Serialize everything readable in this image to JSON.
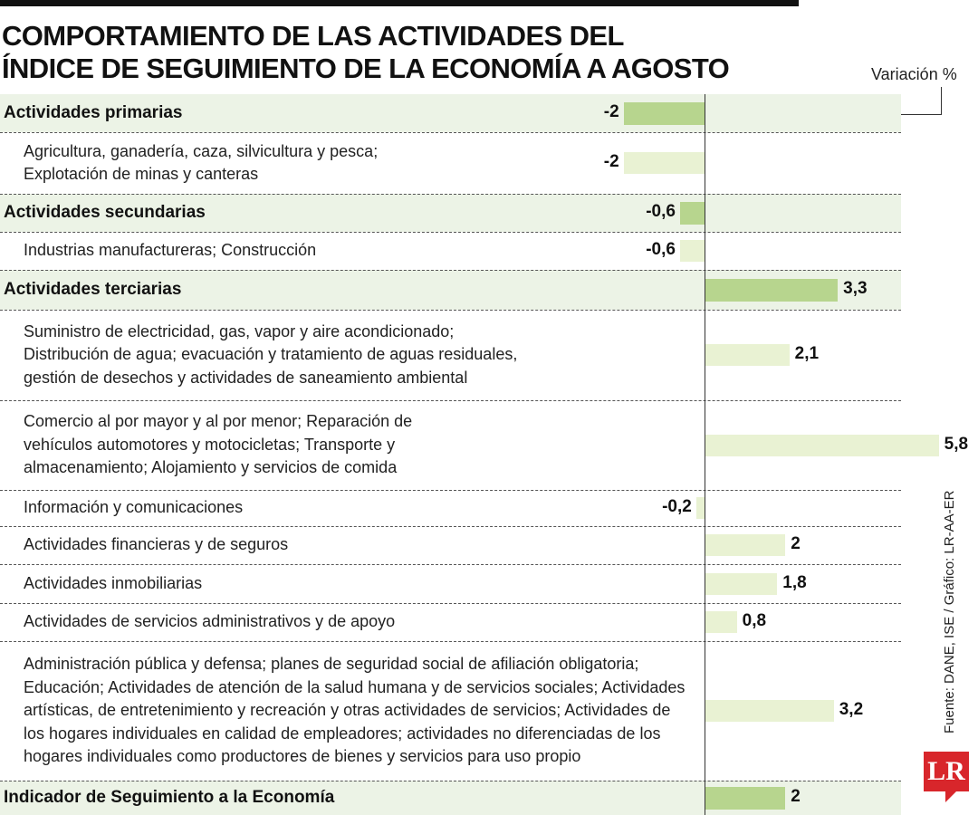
{
  "title_lines": [
    "COMPORTAMIENTO DE LAS ACTIVIDADES DEL",
    "ÍNDICE DE SEGUIMIENTO DE LA ECONOMÍA A AGOSTO"
  ],
  "unit_label": "Variación %",
  "source": "Fuente: DANE, ISE / Gráfico: LR-AA-ER",
  "logo_text": "LR",
  "colors": {
    "main_row_bg": "#ecf3e6",
    "main_bar": "#b7d58e",
    "sub_bar": "#e9f2d3",
    "logo": "#d8262b"
  },
  "chart_data": {
    "type": "bar",
    "title": "COMPORTAMIENTO DE LAS ACTIVIDADES DEL ÍNDICE DE SEGUIMIENTO DE LA ECONOMÍA A AGOSTO",
    "xlabel": "Variación %",
    "ylabel": "",
    "xlim": [
      -2,
      5.8
    ],
    "grid": false,
    "categories": [
      "Actividades primarias",
      "Agricultura, ganadería, caza, silvicultura y pesca; Explotación de minas y canteras",
      "Actividades secundarias",
      "Industrias manufactureras; Construcción",
      "Actividades terciarias",
      "Suministro de electricidad, gas, vapor y aire acondicionado; Distribución de agua; evacuación y tratamiento de aguas residuales, gestión de desechos y actividades de saneamiento ambiental",
      "Comercio al por mayor y al por menor; Reparación de vehículos automotores y motocicletas; Transporte y almacenamiento; Alojamiento y servicios de comida",
      "Información y comunicaciones",
      "Actividades financieras y de seguros",
      "Actividades inmobiliarias",
      "Actividades de servicios administrativos y de apoyo",
      "Administración pública y defensa; planes de seguridad social de afiliación obligatoria; Educación; Actividades de atención de la salud humana y de servicios sociales; Actividades artísticas, de entretenimiento y recreación y otras actividades de servicios; Actividades de los hogares individuales en calidad de empleadores; actividades no diferenciadas de los hogares individuales como productores de bienes y servicios para uso propio",
      "Indicador de Seguimiento a la Economía"
    ],
    "values": [
      -2,
      -2,
      -0.6,
      -0.6,
      3.3,
      2.1,
      5.8,
      -0.2,
      2,
      1.8,
      0.8,
      3.2,
      2
    ],
    "value_labels": [
      "-2",
      "-2",
      "-0,6",
      "-0,6",
      "3,3",
      "2,1",
      "5,8",
      "-0,2",
      "2",
      "1,8",
      "0,8",
      "3,2",
      "2"
    ],
    "rows": [
      {
        "kind": "main",
        "lines": [
          "Actividades primarias"
        ]
      },
      {
        "kind": "sub",
        "lines": [
          "Agricultura, ganadería, caza, silvicultura y pesca;",
          "Explotación de minas y canteras"
        ]
      },
      {
        "kind": "main",
        "lines": [
          "Actividades secundarias"
        ]
      },
      {
        "kind": "sub",
        "lines": [
          "Industrias manufactureras; Construcción"
        ]
      },
      {
        "kind": "main",
        "lines": [
          "Actividades terciarias"
        ]
      },
      {
        "kind": "sub",
        "lines": [
          "Suministro de electricidad, gas, vapor y aire acondicionado;",
          "Distribución de agua; evacuación y tratamiento de aguas residuales,",
          "gestión de desechos y actividades de saneamiento ambiental"
        ]
      },
      {
        "kind": "sub",
        "lines": [
          "Comercio al por mayor y al por menor; Reparación de",
          "vehículos automotores y motocicletas; Transporte y",
          "almacenamiento; Alojamiento y servicios de comida"
        ]
      },
      {
        "kind": "sub",
        "lines": [
          "Información y comunicaciones"
        ]
      },
      {
        "kind": "sub",
        "lines": [
          "Actividades financieras y de seguros"
        ]
      },
      {
        "kind": "sub",
        "lines": [
          "Actividades inmobiliarias"
        ]
      },
      {
        "kind": "sub",
        "lines": [
          "Actividades de servicios administrativos y de apoyo"
        ]
      },
      {
        "kind": "sub",
        "lines": [
          "Administración pública y defensa; planes de seguridad social de afiliación obligatoria;",
          "Educación; Actividades de atención de la salud humana y de servicios sociales; Actividades",
          "artísticas, de entretenimiento y recreación y otras actividades de servicios; Actividades de",
          "los hogares individuales en calidad de empleadores; actividades no diferenciadas de los",
          "hogares individuales como productores de bienes y servicios para uso propio"
        ]
      },
      {
        "kind": "main",
        "lines": [
          "Indicador de Seguimiento a la Economía"
        ]
      }
    ]
  }
}
